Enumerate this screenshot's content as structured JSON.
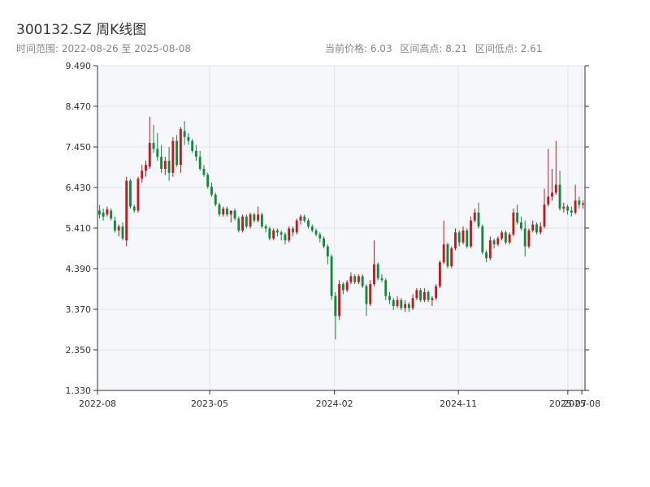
{
  "header": {
    "title": "300132.SZ 周K线图",
    "range_text": "时间范围: 2022-08-26 至 2025-08-08",
    "current_price_text": "当前价格: 6.03",
    "range_high_text": "区间高点: 8.21",
    "range_low_text": "区间低点: 2.61"
  },
  "colors": {
    "up": "#c8161d",
    "down": "#0e8a3a",
    "plot_bg": "#f5f7fa",
    "grid": "#e3e6ea",
    "axis": "#333333"
  },
  "chart_data": {
    "type": "candlestick",
    "title": "300132.SZ 周K线图",
    "y_ticks": [
      "1.330",
      "2.350",
      "3.370",
      "4.390",
      "5.410",
      "6.430",
      "7.450",
      "8.470",
      "9.490"
    ],
    "ylim": [
      1.33,
      9.49
    ],
    "x_ticks": [
      "2022-08",
      "2023-05",
      "2024-02",
      "2024-11",
      "2025-07",
      "2025-08"
    ],
    "grid": true,
    "start_date": "2022-08-26",
    "end_date": "2025-08-08",
    "current_price": 6.03,
    "range_high": 8.21,
    "range_low": 2.61,
    "weekly_ohlc": [
      [
        5.85,
        5.99,
        5.65,
        5.75
      ],
      [
        5.8,
        5.9,
        5.6,
        5.7
      ],
      [
        5.75,
        5.95,
        5.7,
        5.88
      ],
      [
        5.85,
        5.9,
        5.6,
        5.65
      ],
      [
        5.6,
        5.7,
        5.3,
        5.35
      ],
      [
        5.35,
        5.5,
        5.2,
        5.45
      ],
      [
        5.45,
        5.55,
        5.1,
        5.15
      ],
      [
        5.1,
        6.7,
        4.95,
        6.6
      ],
      [
        6.6,
        6.65,
        5.9,
        5.95
      ],
      [
        5.95,
        6.0,
        5.8,
        5.85
      ],
      [
        5.85,
        6.7,
        5.8,
        6.65
      ],
      [
        6.65,
        7.0,
        6.55,
        6.85
      ],
      [
        6.85,
        7.1,
        6.7,
        7.0
      ],
      [
        6.95,
        8.21,
        6.9,
        7.55
      ],
      [
        7.55,
        8.0,
        7.3,
        7.4
      ],
      [
        7.4,
        7.8,
        7.1,
        7.2
      ],
      [
        7.2,
        7.5,
        6.8,
        6.9
      ],
      [
        6.9,
        7.2,
        6.75,
        7.1
      ],
      [
        7.1,
        7.45,
        6.6,
        6.8
      ],
      [
        6.8,
        7.7,
        6.7,
        7.6
      ],
      [
        7.6,
        7.75,
        6.95,
        7.0
      ],
      [
        7.0,
        7.95,
        6.8,
        7.9
      ],
      [
        7.85,
        8.1,
        7.5,
        7.7
      ],
      [
        7.7,
        7.8,
        7.5,
        7.6
      ],
      [
        7.6,
        7.65,
        7.3,
        7.35
      ],
      [
        7.35,
        7.5,
        7.1,
        7.2
      ],
      [
        7.2,
        7.35,
        6.85,
        6.9
      ],
      [
        6.9,
        7.0,
        6.7,
        6.75
      ],
      [
        6.75,
        6.8,
        6.4,
        6.45
      ],
      [
        6.45,
        6.55,
        6.2,
        6.25
      ],
      [
        6.25,
        6.3,
        5.95,
        6.0
      ],
      [
        6.0,
        6.05,
        5.7,
        5.75
      ],
      [
        5.75,
        5.95,
        5.7,
        5.9
      ],
      [
        5.9,
        5.95,
        5.7,
        5.75
      ],
      [
        5.75,
        5.85,
        5.55,
        5.85
      ],
      [
        5.85,
        5.9,
        5.6,
        5.65
      ],
      [
        5.65,
        5.7,
        5.3,
        5.35
      ],
      [
        5.35,
        5.75,
        5.3,
        5.7
      ],
      [
        5.7,
        5.75,
        5.4,
        5.45
      ],
      [
        5.45,
        5.8,
        5.4,
        5.75
      ],
      [
        5.75,
        5.8,
        5.55,
        5.6
      ],
      [
        5.6,
        5.95,
        5.55,
        5.75
      ],
      [
        5.75,
        5.8,
        5.4,
        5.45
      ],
      [
        5.45,
        5.5,
        5.3,
        5.4
      ],
      [
        5.4,
        5.45,
        5.1,
        5.15
      ],
      [
        5.15,
        5.4,
        5.1,
        5.35
      ],
      [
        5.35,
        5.4,
        5.2,
        5.3
      ],
      [
        5.3,
        5.35,
        5.1,
        5.25
      ],
      [
        5.25,
        5.3,
        5.0,
        5.1
      ],
      [
        5.1,
        5.45,
        5.05,
        5.4
      ],
      [
        5.4,
        5.45,
        5.2,
        5.3
      ],
      [
        5.3,
        5.65,
        5.25,
        5.6
      ],
      [
        5.6,
        5.75,
        5.5,
        5.7
      ],
      [
        5.7,
        5.75,
        5.55,
        5.6
      ],
      [
        5.6,
        5.65,
        5.4,
        5.45
      ],
      [
        5.45,
        5.5,
        5.3,
        5.35
      ],
      [
        5.35,
        5.4,
        5.2,
        5.25
      ],
      [
        5.25,
        5.3,
        5.05,
        5.15
      ],
      [
        5.15,
        5.2,
        4.9,
        4.95
      ],
      [
        4.95,
        5.0,
        4.5,
        4.7
      ],
      [
        4.7,
        4.75,
        3.6,
        3.7
      ],
      [
        3.7,
        3.8,
        2.61,
        3.2
      ],
      [
        3.2,
        4.1,
        3.1,
        4.0
      ],
      [
        4.0,
        4.05,
        3.75,
        3.85
      ],
      [
        3.85,
        4.1,
        3.8,
        4.05
      ],
      [
        4.05,
        4.3,
        4.0,
        4.2
      ],
      [
        4.2,
        4.25,
        4.0,
        4.05
      ],
      [
        4.05,
        4.25,
        4.0,
        4.2
      ],
      [
        4.2,
        4.25,
        3.9,
        3.95
      ],
      [
        3.95,
        4.0,
        3.2,
        3.5
      ],
      [
        3.5,
        4.1,
        3.45,
        4.0
      ],
      [
        4.0,
        5.1,
        3.95,
        4.5
      ],
      [
        4.5,
        4.55,
        4.1,
        4.15
      ],
      [
        4.15,
        4.25,
        4.05,
        4.1
      ],
      [
        4.1,
        4.15,
        3.6,
        3.7
      ],
      [
        3.7,
        3.8,
        3.5,
        3.6
      ],
      [
        3.6,
        3.65,
        3.35,
        3.45
      ],
      [
        3.45,
        3.7,
        3.4,
        3.6
      ],
      [
        3.6,
        3.65,
        3.35,
        3.4
      ],
      [
        3.4,
        3.6,
        3.3,
        3.5
      ],
      [
        3.5,
        3.55,
        3.3,
        3.4
      ],
      [
        3.4,
        3.75,
        3.35,
        3.65
      ],
      [
        3.65,
        3.9,
        3.6,
        3.85
      ],
      [
        3.85,
        3.9,
        3.55,
        3.6
      ],
      [
        3.6,
        3.9,
        3.55,
        3.8
      ],
      [
        3.8,
        3.85,
        3.55,
        3.6
      ],
      [
        3.6,
        3.7,
        3.45,
        3.65
      ],
      [
        3.65,
        4.0,
        3.6,
        3.95
      ],
      [
        3.95,
        4.6,
        3.9,
        4.55
      ],
      [
        4.55,
        5.6,
        4.5,
        5.0
      ],
      [
        5.0,
        5.05,
        4.4,
        4.45
      ],
      [
        4.45,
        4.95,
        4.4,
        4.9
      ],
      [
        4.9,
        5.4,
        4.85,
        5.3
      ],
      [
        5.3,
        5.35,
        4.95,
        5.05
      ],
      [
        5.05,
        5.45,
        5.0,
        5.35
      ],
      [
        5.35,
        5.4,
        4.9,
        4.95
      ],
      [
        4.95,
        5.7,
        4.9,
        5.6
      ],
      [
        5.6,
        5.9,
        5.55,
        5.8
      ],
      [
        5.8,
        6.05,
        5.4,
        5.45
      ],
      [
        5.45,
        5.5,
        4.75,
        4.8
      ],
      [
        4.8,
        4.85,
        4.55,
        4.65
      ],
      [
        4.65,
        5.2,
        4.6,
        5.1
      ],
      [
        5.1,
        5.15,
        4.9,
        5.0
      ],
      [
        5.0,
        5.2,
        4.95,
        5.15
      ],
      [
        5.15,
        5.35,
        5.1,
        5.3
      ],
      [
        5.3,
        5.35,
        5.0,
        5.05
      ],
      [
        5.05,
        5.3,
        5.0,
        5.25
      ],
      [
        5.25,
        5.9,
        5.2,
        5.8
      ],
      [
        5.8,
        6.0,
        5.5,
        5.55
      ],
      [
        5.55,
        5.7,
        5.35,
        5.4
      ],
      [
        5.4,
        5.6,
        4.7,
        4.95
      ],
      [
        4.95,
        5.4,
        4.9,
        5.35
      ],
      [
        5.35,
        5.6,
        5.3,
        5.5
      ],
      [
        5.5,
        5.55,
        5.25,
        5.3
      ],
      [
        5.3,
        5.55,
        5.25,
        5.45
      ],
      [
        5.45,
        6.4,
        5.4,
        6.0
      ],
      [
        6.0,
        7.4,
        5.95,
        6.2
      ],
      [
        6.2,
        6.9,
        6.1,
        6.3
      ],
      [
        6.3,
        7.6,
        6.25,
        6.5
      ],
      [
        6.5,
        6.85,
        5.85,
        5.9
      ],
      [
        5.9,
        6.05,
        5.8,
        5.95
      ],
      [
        5.95,
        6.0,
        5.75,
        5.85
      ],
      [
        5.85,
        5.95,
        5.7,
        5.8
      ],
      [
        5.8,
        6.5,
        5.75,
        6.1
      ],
      [
        6.1,
        6.2,
        5.9,
        6.0
      ],
      [
        6.0,
        6.1,
        5.9,
        6.03
      ]
    ]
  }
}
